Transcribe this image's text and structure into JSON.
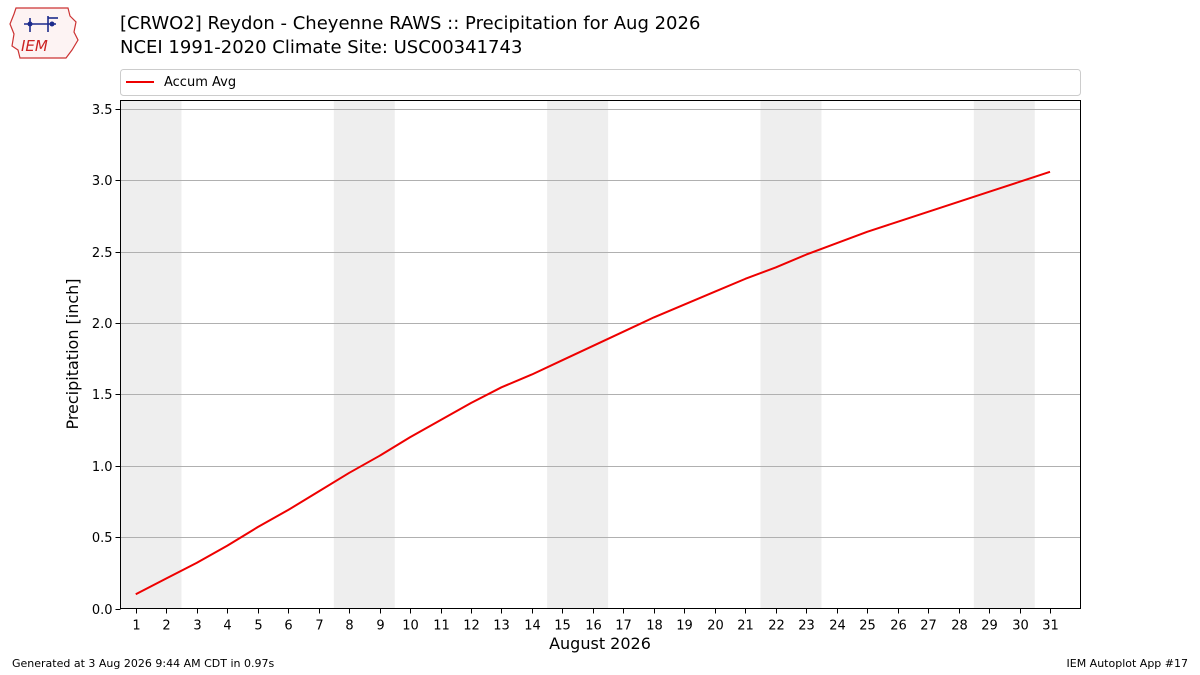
{
  "header": {
    "logo_text": "IEM",
    "title": "[CRWO2] Reydon - Cheyenne RAWS :: Precipitation for Aug 2026",
    "subtitle": "NCEI 1991-2020 Climate Site: USC00341743"
  },
  "footer": {
    "generated": "Generated at 3 Aug 2026 9:44 AM CDT in 0.97s",
    "app": "IEM Autoplot App #17"
  },
  "colors": {
    "line": "#ee0000",
    "weekend_band": "#eeeeee",
    "grid": "#b0b0b0"
  },
  "chart_data": {
    "type": "line",
    "xlabel": "August 2026",
    "ylabel": "Precipitation [inch]",
    "xlim": [
      0.5,
      32
    ],
    "ylim": [
      0,
      3.56
    ],
    "yticks": [
      0.0,
      0.5,
      1.0,
      1.5,
      2.0,
      2.5,
      3.0,
      3.5
    ],
    "ytick_labels": [
      "0.0",
      "0.5",
      "1.0",
      "1.5",
      "2.0",
      "2.5",
      "3.0",
      "3.5"
    ],
    "x": [
      1,
      2,
      3,
      4,
      5,
      6,
      7,
      8,
      9,
      10,
      11,
      12,
      13,
      14,
      15,
      16,
      17,
      18,
      19,
      20,
      21,
      22,
      23,
      24,
      25,
      26,
      27,
      28,
      29,
      30,
      31
    ],
    "xtick_labels": [
      "1",
      "2",
      "3",
      "4",
      "5",
      "6",
      "7",
      "8",
      "9",
      "10",
      "11",
      "12",
      "13",
      "14",
      "15",
      "16",
      "17",
      "18",
      "19",
      "20",
      "21",
      "22",
      "23",
      "24",
      "25",
      "26",
      "27",
      "28",
      "29",
      "30",
      "31"
    ],
    "weekend_bands": [
      [
        0.5,
        2.5
      ],
      [
        7.5,
        9.5
      ],
      [
        14.5,
        16.5
      ],
      [
        21.5,
        23.5
      ],
      [
        28.5,
        30.5
      ]
    ],
    "grid": "y",
    "legend_placement": "top",
    "series": [
      {
        "name": "Accum Avg",
        "values": [
          0.1,
          0.21,
          0.32,
          0.44,
          0.57,
          0.69,
          0.82,
          0.95,
          1.07,
          1.2,
          1.32,
          1.44,
          1.55,
          1.64,
          1.74,
          1.84,
          1.94,
          2.04,
          2.13,
          2.22,
          2.31,
          2.39,
          2.48,
          2.56,
          2.64,
          2.71,
          2.78,
          2.85,
          2.92,
          2.99,
          3.06
        ]
      }
    ]
  }
}
